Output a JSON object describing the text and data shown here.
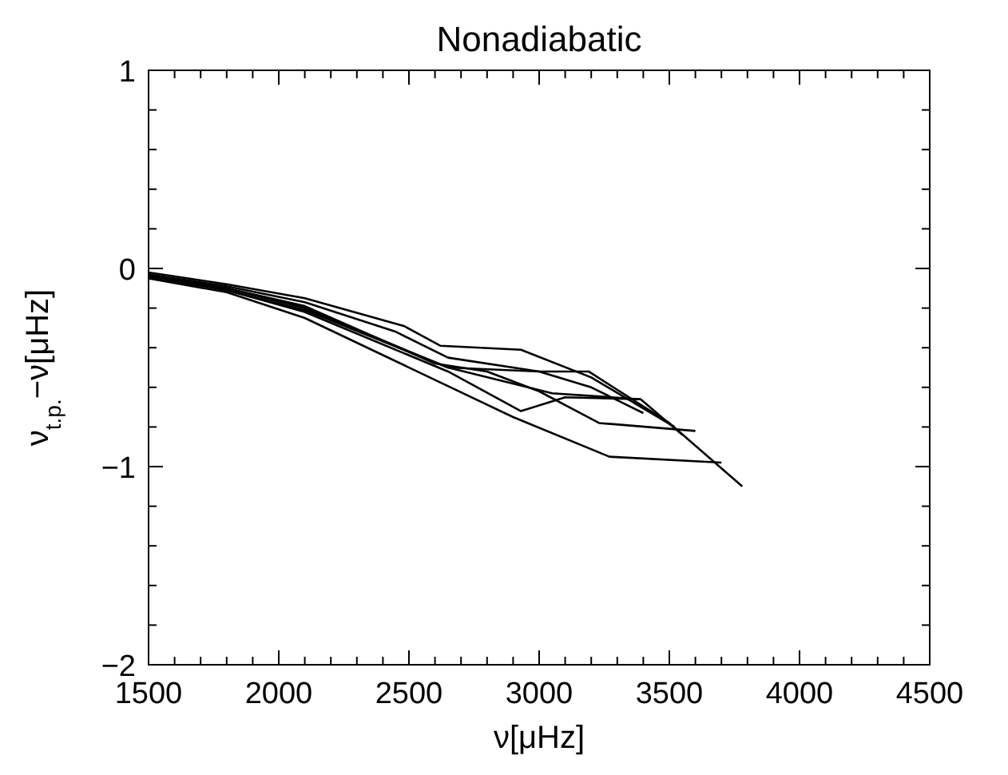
{
  "chart_data": {
    "type": "line",
    "title": "Nonadiabatic",
    "xlabel": "ν[μHz]",
    "ylabel": "ν$_{t.p.}$−ν[μHz]",
    "xlim": [
      1500,
      4500
    ],
    "xticks": [
      1500,
      {
        "value": 1600,
        "label": null
      },
      {
        "value": 1700,
        "label": null
      },
      {
        "value": 1800,
        "label": null
      },
      {
        "value": 1900,
        "label": null
      },
      2000,
      {
        "value": 2100,
        "label": null
      },
      {
        "value": 2200,
        "label": null
      },
      {
        "value": 2300,
        "label": null
      },
      {
        "value": 2400,
        "label": null
      },
      2500,
      {
        "value": 2600,
        "label": null
      },
      {
        "value": 2700,
        "label": null
      },
      {
        "value": 2800,
        "label": null
      },
      {
        "value": 2900,
        "label": null
      },
      3000,
      {
        "value": 3100,
        "label": null
      },
      {
        "value": 3200,
        "label": null
      },
      {
        "value": 3300,
        "label": null
      },
      {
        "value": 3400,
        "label": null
      },
      3500,
      {
        "value": 3600,
        "label": null
      },
      {
        "value": 3700,
        "label": null
      },
      {
        "value": 3800,
        "label": null
      },
      {
        "value": 3900,
        "label": null
      },
      4000,
      {
        "value": 4100,
        "label": null
      },
      {
        "value": 4200,
        "label": null
      },
      {
        "value": 4300,
        "label": null
      },
      {
        "value": 4400,
        "label": null
      },
      4500
    ],
    "ylim": [
      -2,
      1
    ],
    "yticks": [
      -2,
      {
        "value": -1.8,
        "label": null
      },
      {
        "value": -1.6,
        "label": null
      },
      {
        "value": -1.4,
        "label": null
      },
      {
        "value": -1.2,
        "label": null
      },
      -1,
      {
        "value": -0.8,
        "label": null
      },
      {
        "value": -0.6,
        "label": null
      },
      {
        "value": -0.4,
        "label": null
      },
      {
        "value": -0.2,
        "label": null
      },
      0,
      {
        "value": 0.2,
        "label": null
      },
      {
        "value": 0.4,
        "label": null
      },
      {
        "value": 0.6,
        "label": null
      },
      {
        "value": 0.8,
        "label": null
      },
      1
    ],
    "legend": false,
    "marker": "none",
    "line_style": "solid",
    "series": [
      {
        "color": "#000000",
        "x": [
          1500,
          1800,
          2100,
          2480,
          2620,
          2930,
          3200,
          3520
        ],
        "values": [
          -0.02,
          -0.08,
          -0.15,
          -0.29,
          -0.39,
          -0.41,
          -0.55,
          -0.8
        ]
      },
      {
        "color": "#000000",
        "x": [
          1500,
          1800,
          2100,
          2450,
          2650,
          3000,
          3190,
          3500,
          3780
        ],
        "values": [
          -0.03,
          -0.09,
          -0.17,
          -0.32,
          -0.45,
          -0.52,
          -0.52,
          -0.78,
          -1.1
        ]
      },
      {
        "color": "#000000",
        "x": [
          1500,
          1800,
          2100,
          2600,
          2800,
          3000,
          3230,
          3600
        ],
        "values": [
          -0.03,
          -0.1,
          -0.19,
          -0.48,
          -0.52,
          -0.62,
          -0.78,
          -0.82
        ]
      },
      {
        "color": "#000000",
        "x": [
          1500,
          1800,
          2100,
          2900,
          3270,
          3700
        ],
        "values": [
          -0.05,
          -0.12,
          -0.25,
          -0.75,
          -0.95,
          -0.98
        ]
      },
      {
        "color": "#000000",
        "x": [
          1500,
          1800,
          2100,
          2650,
          2930,
          3100,
          3390,
          3550
        ],
        "values": [
          -0.04,
          -0.11,
          -0.22,
          -0.52,
          -0.72,
          -0.65,
          -0.66,
          -0.84
        ]
      },
      {
        "color": "#000000",
        "x": [
          1500,
          1800,
          2100,
          2650,
          3000,
          3200,
          3400
        ],
        "values": [
          -0.04,
          -0.1,
          -0.2,
          -0.5,
          -0.52,
          -0.6,
          -0.73
        ]
      },
      {
        "color": "#000000",
        "x": [
          1500,
          1800,
          2100,
          2650,
          3050,
          3390
        ],
        "values": [
          -0.04,
          -0.11,
          -0.21,
          -0.5,
          -0.63,
          -0.66
        ]
      }
    ]
  }
}
